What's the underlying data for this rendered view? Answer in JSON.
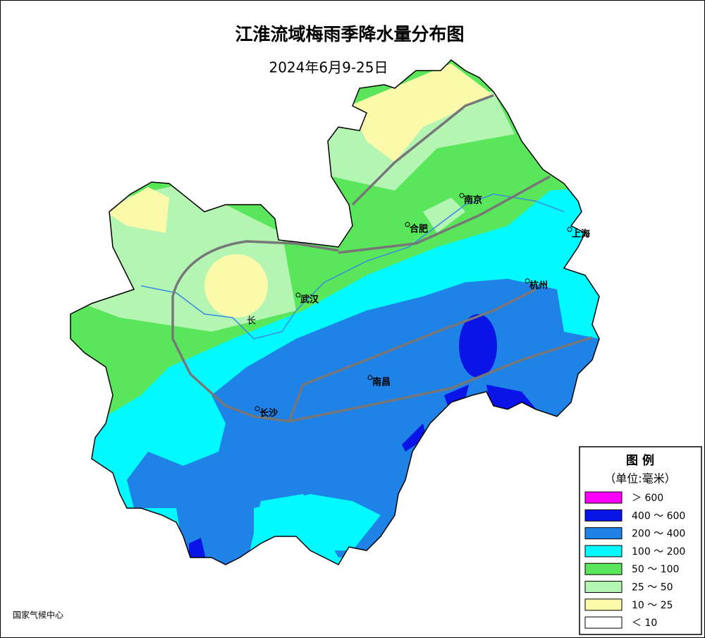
{
  "header": {
    "title": "江淮流域梅雨季降水量分布图",
    "subtitle": "2024年6月9-25日"
  },
  "cities": [
    "南京",
    "合肥",
    "上海",
    "杭州",
    "武汉",
    "南昌",
    "长沙"
  ],
  "river_label": "长",
  "legend": {
    "title": "图  例",
    "unit": "（单位:毫米）",
    "items": [
      {
        "label": "＞ 600",
        "color": "#ff00ff"
      },
      {
        "label": "400 ～ 600",
        "color": "#0a14e6"
      },
      {
        "label": "200 ～ 400",
        "color": "#1e82e6"
      },
      {
        "label": "100 ～ 200",
        "color": "#00faff"
      },
      {
        "label": "50 ～ 100",
        "color": "#5ae65a"
      },
      {
        "label": "25 ～ 50",
        "color": "#b4f5b4"
      },
      {
        "label": "10 ～ 25",
        "color": "#fafaaa"
      },
      {
        "label": "＜ 10",
        "color": "#ffffff"
      }
    ]
  },
  "source": "国家气候中心"
}
